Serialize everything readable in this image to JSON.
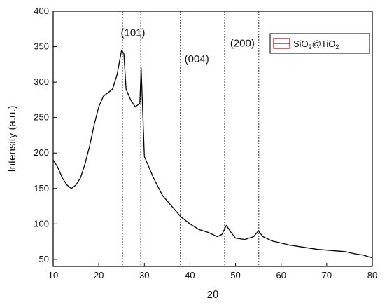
{
  "chart_data": {
    "type": "line",
    "title": "",
    "xlabel": "2θ",
    "ylabel": "Intensity (a.u.)",
    "xlim": [
      10,
      80
    ],
    "ylim": [
      40,
      400
    ],
    "xticks": [
      10,
      20,
      30,
      40,
      50,
      60,
      70,
      80
    ],
    "yticks": [
      50,
      100,
      150,
      200,
      250,
      300,
      350,
      400
    ],
    "grid": false,
    "legend_position": "top-right",
    "series": [
      {
        "name": "SiO2@TiO2",
        "color": "#000000",
        "legend_swatch_color": "#cc0000",
        "x": [
          10,
          11,
          12,
          13,
          14,
          15,
          16,
          17,
          18,
          19,
          20,
          21,
          22,
          23,
          24,
          25,
          25.5,
          26,
          27,
          28,
          29,
          29.3,
          30,
          32,
          34,
          36,
          38,
          40,
          42,
          44,
          46,
          47,
          48,
          49,
          50,
          52,
          54,
          55,
          56,
          58,
          60,
          62,
          64,
          66,
          68,
          70,
          72,
          74,
          76,
          78,
          80
        ],
        "y": [
          190,
          180,
          165,
          155,
          150,
          155,
          165,
          185,
          210,
          240,
          265,
          280,
          285,
          290,
          310,
          345,
          340,
          290,
          275,
          265,
          270,
          320,
          195,
          165,
          140,
          125,
          110,
          100,
          92,
          88,
          82,
          85,
          98,
          88,
          80,
          78,
          82,
          90,
          82,
          76,
          73,
          70,
          68,
          66,
          64,
          63,
          62,
          61,
          58,
          56,
          52
        ]
      }
    ],
    "annotations": [
      {
        "text": "(101)",
        "x": 27.5,
        "y": 365
      },
      {
        "text": "(004)",
        "x": 41.5,
        "y": 328
      },
      {
        "text": "(200)",
        "x": 51.5,
        "y": 350
      }
    ],
    "reference_lines_x": [
      25.2,
      29.2,
      37.9,
      47.6,
      55.1
    ]
  },
  "legend": {
    "label_prefix": "SiO",
    "label_sub1": "2",
    "label_mid": "@TiO",
    "label_sub2": "2"
  }
}
